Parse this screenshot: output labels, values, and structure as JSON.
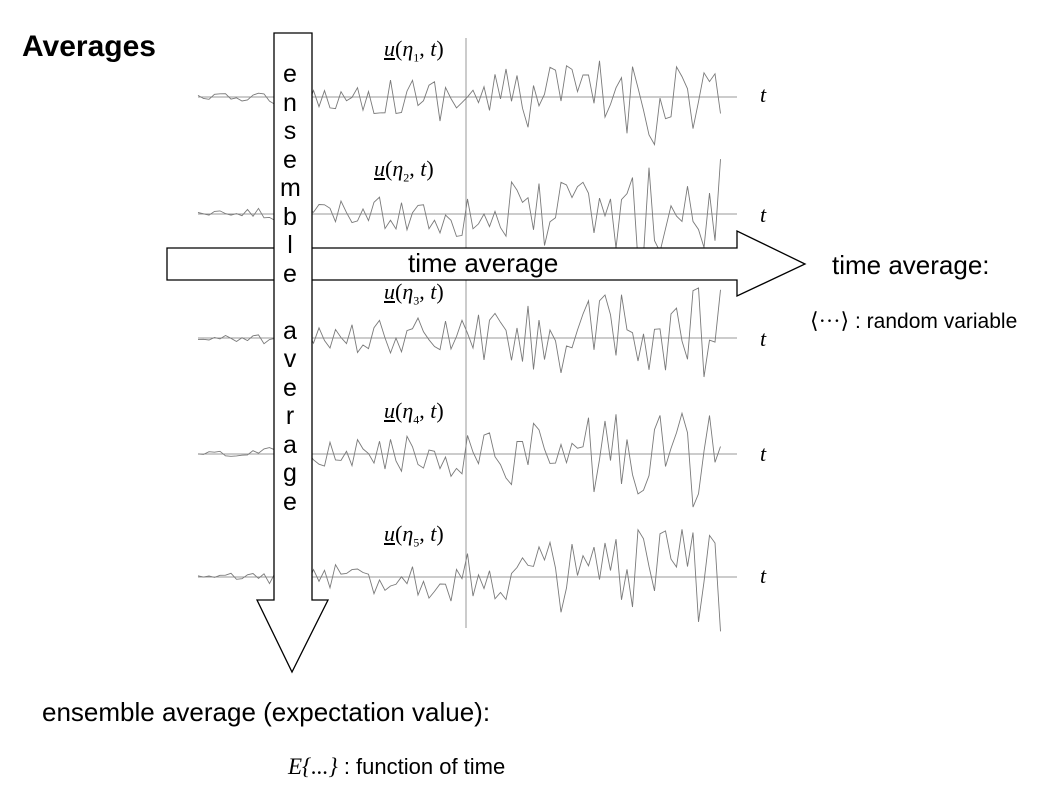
{
  "title": "Averages",
  "signals": [
    {
      "u": "u",
      "eta": "η",
      "index": "1",
      "t": "t"
    },
    {
      "u": "u",
      "eta": "η",
      "index": "2",
      "t": "t"
    },
    {
      "u": "u",
      "eta": "η",
      "index": "3",
      "t": "t"
    },
    {
      "u": "u",
      "eta": "η",
      "index": "4",
      "t": "t"
    },
    {
      "u": "u",
      "eta": "η",
      "index": "5",
      "t": "t"
    }
  ],
  "axis_label": "t",
  "time_arrow_label": "time average",
  "ensemble_arrow_label": [
    "e",
    "n",
    "s",
    "e",
    "m",
    "b",
    "l",
    "e",
    "",
    "a",
    "v",
    "e",
    "r",
    "a",
    "g",
    "e"
  ],
  "time_average": {
    "heading": "time average:",
    "symbol": "⟨···⟩",
    "description": ": random variable"
  },
  "ensemble_average": {
    "heading": "ensemble average (expectation value):",
    "symbol": "E{...}",
    "description": ": function of time"
  },
  "colors": {
    "signal": "#7a7a7a",
    "axis": "#9a9a9a",
    "arrow": "#000000"
  }
}
